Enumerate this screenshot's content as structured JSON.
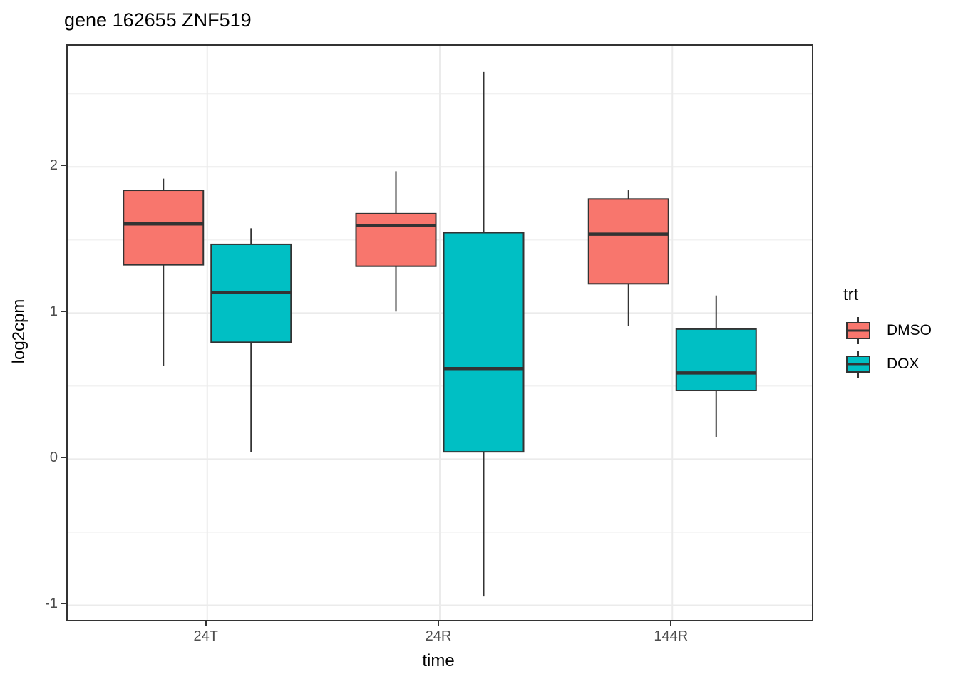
{
  "chart_data": {
    "type": "boxplot",
    "title": "gene 162655 ZNF519",
    "xlabel": "time",
    "ylabel": "log2cpm",
    "categories": [
      "24T",
      "24R",
      "144R"
    ],
    "y_ticks": [
      -1,
      0,
      1,
      2
    ],
    "y_minor_ticks": [
      -0.5,
      0.5,
      1.5,
      2.5
    ],
    "ylim": [
      -1.1,
      2.83
    ],
    "grid": "major-and-minor, light gray on white, black panel border",
    "legend": {
      "title": "trt",
      "position": "right",
      "entries": [
        {
          "label": "DMSO",
          "color": "#F8766D"
        },
        {
          "label": "DOX",
          "color": "#00BFC4"
        }
      ]
    },
    "style_colors": {
      "box_outline": "#333333",
      "grid_major": "#EBEBEB",
      "grid_minor": "#F1F1F1",
      "axis_text": "#4D4D4D",
      "title_text": "#000000"
    },
    "series": [
      {
        "name": "DMSO",
        "color": "#F8766D",
        "boxes": [
          {
            "category": "24T",
            "min": 0.64,
            "q1": 1.33,
            "median": 1.61,
            "q3": 1.84,
            "max": 1.92
          },
          {
            "category": "24R",
            "min": 1.01,
            "q1": 1.32,
            "median": 1.6,
            "q3": 1.68,
            "max": 1.97
          },
          {
            "category": "144R",
            "min": 0.91,
            "q1": 1.2,
            "median": 1.54,
            "q3": 1.78,
            "max": 1.84
          }
        ]
      },
      {
        "name": "DOX",
        "color": "#00BFC4",
        "boxes": [
          {
            "category": "24T",
            "min": 0.05,
            "q1": 0.8,
            "median": 1.14,
            "q3": 1.47,
            "max": 1.58
          },
          {
            "category": "24R",
            "min": -0.94,
            "q1": 0.05,
            "median": 0.62,
            "q3": 1.55,
            "max": 2.65
          },
          {
            "category": "144R",
            "min": 0.15,
            "q1": 0.47,
            "median": 0.59,
            "q3": 0.89,
            "max": 1.12
          }
        ]
      }
    ]
  }
}
